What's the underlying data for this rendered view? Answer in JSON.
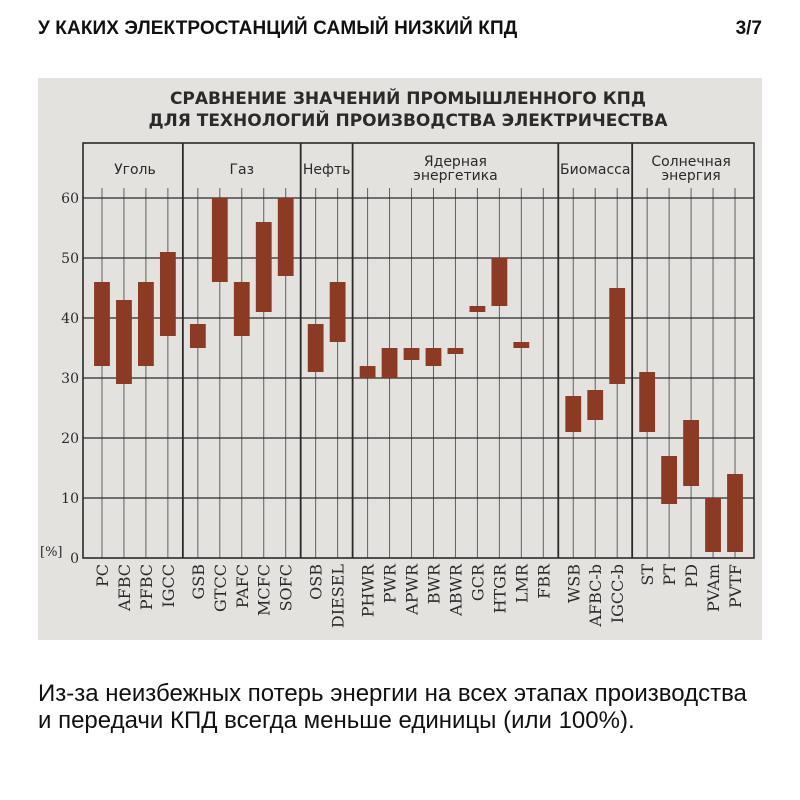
{
  "header": {
    "title": "У КАКИХ ЭЛЕКТРОСТАНЦИЙ САМЫЙ НИЗКИЙ КПД",
    "page": "3/7"
  },
  "caption": "Из-за неизбежных потерь энергии на всех этапах производства и передачи КПД всегда меньше единицы (или 100%).",
  "chart_data": {
    "type": "bar",
    "title": "СРАВНЕНИЕ ЗНАЧЕНИЙ ПРОМЫШЛЕННОГО КПД",
    "subtitle": "ДЛЯ ТЕХНОЛОГИЙ ПРОИЗВОДСТВА ЭЛЕКТРИЧЕСТВА",
    "ylabel": "[%]",
    "ylim": [
      0,
      60
    ],
    "yticks": [
      "0",
      "10",
      "20",
      "30",
      "40",
      "50",
      "60"
    ],
    "grid": true,
    "bar_color": "#8b3a24",
    "groups": [
      {
        "name": "Уголь",
        "items": [
          {
            "label": "PC",
            "low": 32,
            "high": 46
          },
          {
            "label": "AFBC",
            "low": 29,
            "high": 43
          },
          {
            "label": "PFBC",
            "low": 32,
            "high": 46
          },
          {
            "label": "IGCC",
            "low": 37,
            "high": 51
          }
        ]
      },
      {
        "name": "Газ",
        "items": [
          {
            "label": "GSB",
            "low": 35,
            "high": 39
          },
          {
            "label": "GTCC",
            "low": 46,
            "high": 60
          },
          {
            "label": "PAFC",
            "low": 37,
            "high": 46
          },
          {
            "label": "MCFC",
            "low": 41,
            "high": 56
          },
          {
            "label": "SOFC",
            "low": 47,
            "high": 60
          }
        ]
      },
      {
        "name": "Нефть",
        "items": [
          {
            "label": "OSB",
            "low": 31,
            "high": 39
          },
          {
            "label": "DIESEL",
            "low": 36,
            "high": 46
          }
        ]
      },
      {
        "name": "Ядерная энергетика",
        "items": [
          {
            "label": "PHWR",
            "low": 30,
            "high": 32
          },
          {
            "label": "PWR",
            "low": 30,
            "high": 35
          },
          {
            "label": "APWR",
            "low": 33,
            "high": 35
          },
          {
            "label": "BWR",
            "low": 32,
            "high": 35
          },
          {
            "label": "ABWR",
            "low": 34,
            "high": 35
          },
          {
            "label": "GCR",
            "low": 41,
            "high": 42
          },
          {
            "label": "HTGR",
            "low": 42,
            "high": 50
          },
          {
            "label": "LMR",
            "low": 35,
            "high": 36
          },
          {
            "label": "FBR",
            "low": 0,
            "high": 0
          }
        ]
      },
      {
        "name": "Биомасса",
        "items": [
          {
            "label": "WSB",
            "low": 21,
            "high": 27
          },
          {
            "label": "AFBC-b",
            "low": 23,
            "high": 28
          },
          {
            "label": "IGCC-b",
            "low": 29,
            "high": 45
          }
        ]
      },
      {
        "name": "Солнечная энергия",
        "items": [
          {
            "label": "ST",
            "low": 21,
            "high": 31
          },
          {
            "label": "PT",
            "low": 9,
            "high": 17
          },
          {
            "label": "PD",
            "low": 12,
            "high": 23
          },
          {
            "label": "PVAm",
            "low": 1,
            "high": 10
          },
          {
            "label": "PVTF",
            "low": 1,
            "high": 14
          }
        ]
      }
    ]
  }
}
